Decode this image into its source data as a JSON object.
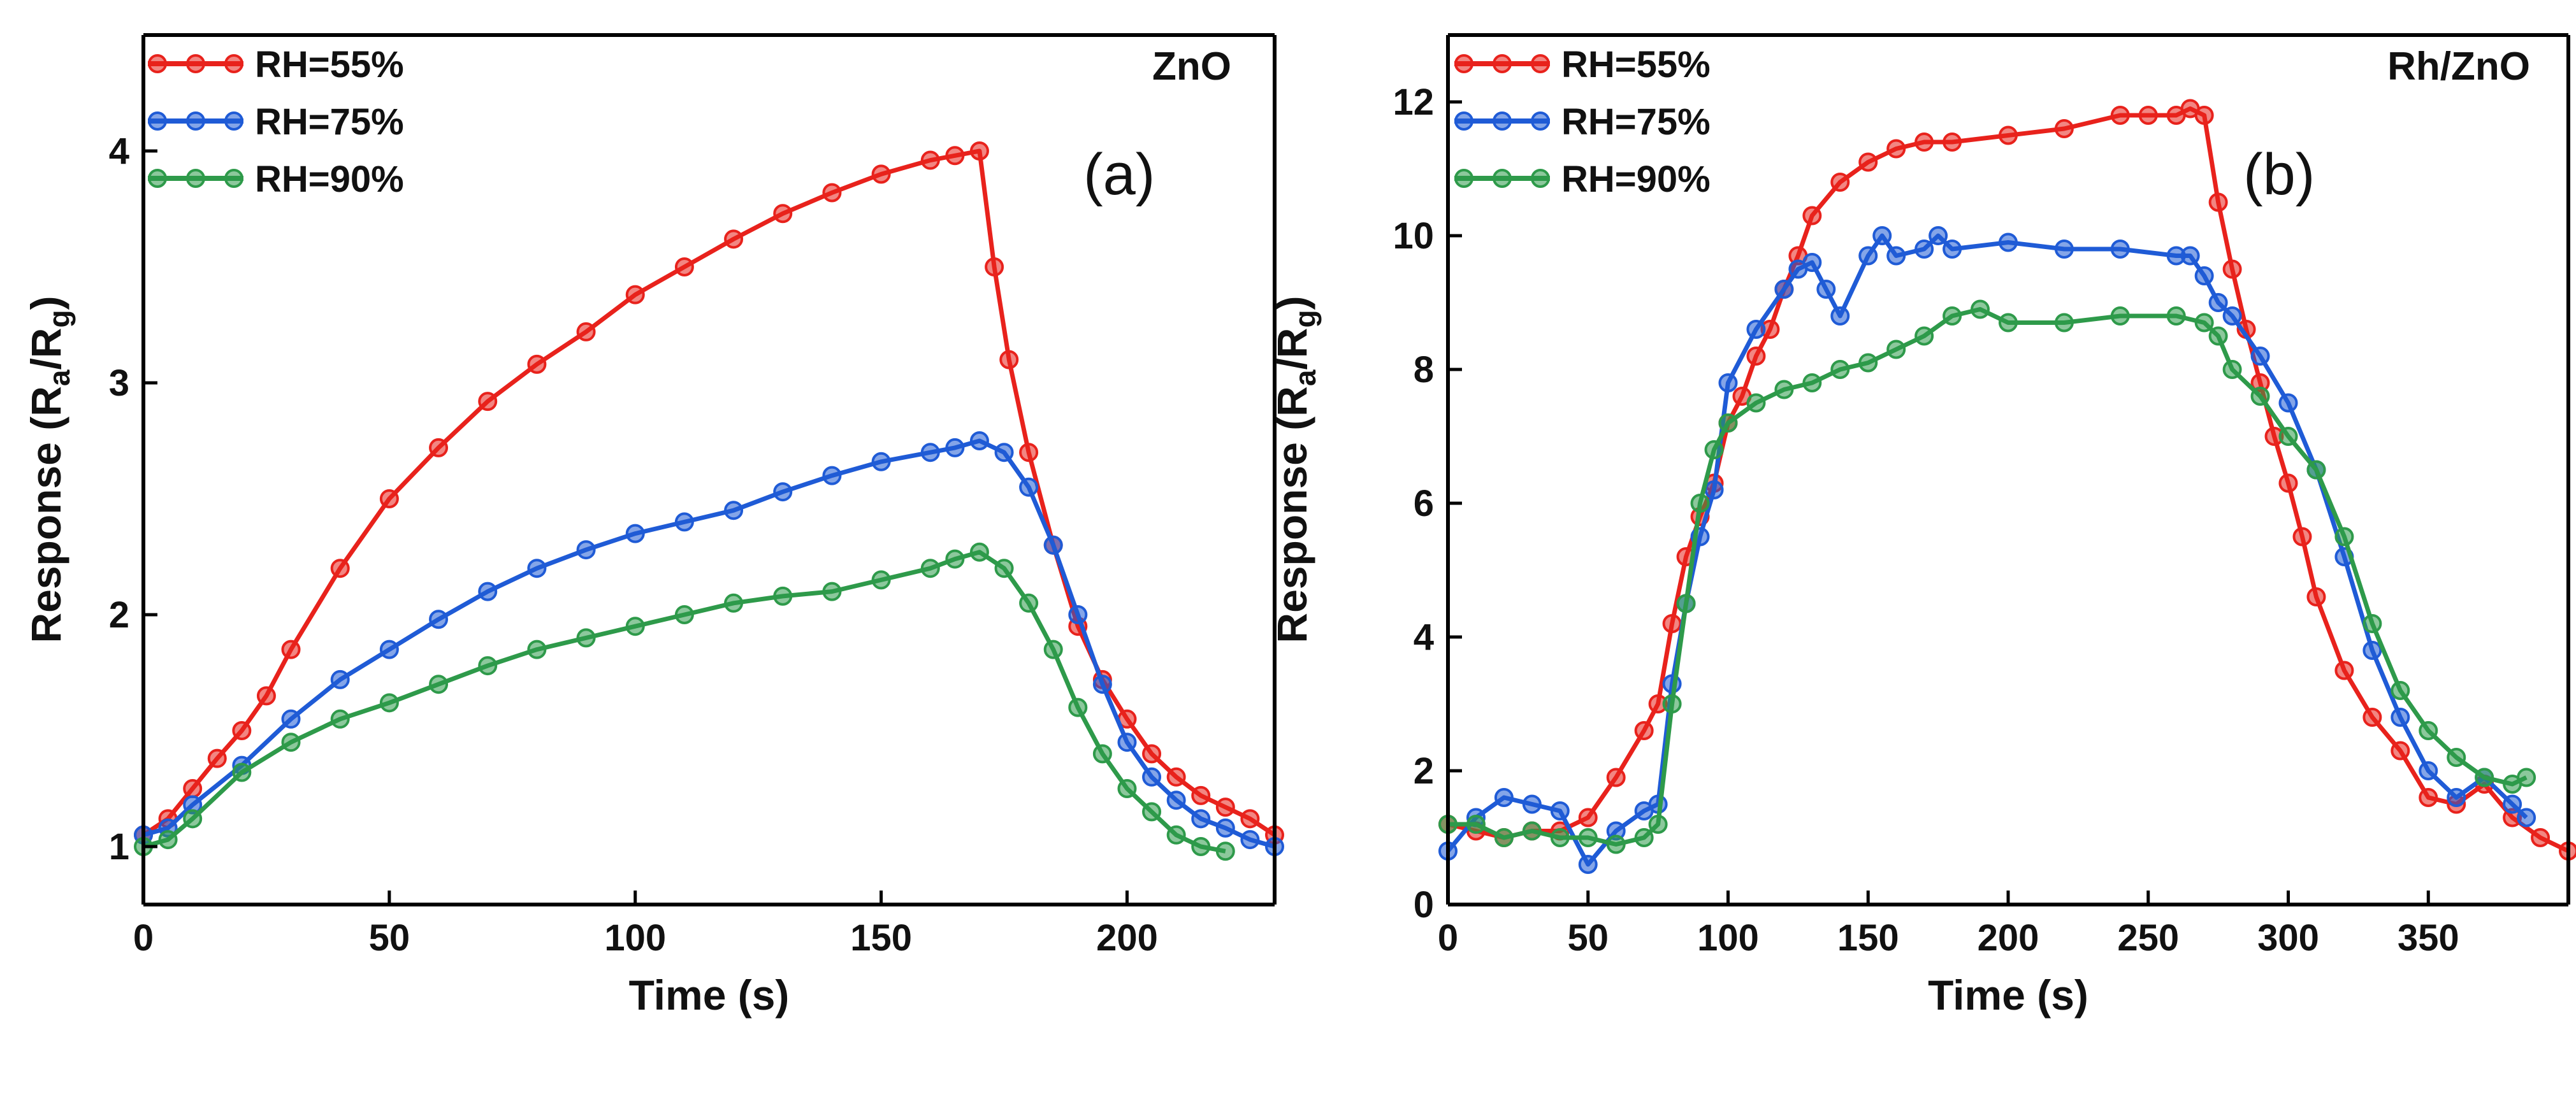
{
  "colors": {
    "RH=55%": "#e8221c",
    "RH=75%": "#1f5bd6",
    "RH=90%": "#2e9a4a"
  },
  "chart_data": [
    {
      "type": "line",
      "panel_label": "(a)",
      "material": "ZnO",
      "xlabel": "Time (s)",
      "ylabel": {
        "main": "Response (R",
        "sub1": "a",
        "mid": "/R",
        "sub2": "g",
        "end": ")"
      },
      "xlim": [
        0,
        230
      ],
      "ylim": [
        0.75,
        4.5
      ],
      "xticks": [
        0,
        50,
        100,
        150,
        200
      ],
      "yticks": [
        1,
        2,
        3,
        4
      ],
      "legend": [
        "RH=55%",
        "RH=75%",
        "RH=90%"
      ],
      "legend_position": "top-left",
      "series": [
        {
          "name": "RH=55%",
          "x": [
            0,
            5,
            10,
            15,
            20,
            25,
            30,
            40,
            50,
            60,
            70,
            80,
            90,
            100,
            110,
            120,
            130,
            140,
            150,
            160,
            165,
            170,
            173,
            176,
            180,
            185,
            190,
            195,
            200,
            205,
            210,
            215,
            220,
            225,
            230
          ],
          "y": [
            1.05,
            1.12,
            1.25,
            1.38,
            1.5,
            1.65,
            1.85,
            2.2,
            2.5,
            2.72,
            2.92,
            3.08,
            3.22,
            3.38,
            3.5,
            3.62,
            3.73,
            3.82,
            3.9,
            3.96,
            3.98,
            4.0,
            3.5,
            3.1,
            2.7,
            2.3,
            1.95,
            1.72,
            1.55,
            1.4,
            1.3,
            1.22,
            1.17,
            1.12,
            1.05
          ]
        },
        {
          "name": "RH=75%",
          "x": [
            0,
            5,
            10,
            20,
            30,
            40,
            50,
            60,
            70,
            80,
            90,
            100,
            110,
            120,
            130,
            140,
            150,
            160,
            165,
            170,
            175,
            180,
            185,
            190,
            195,
            200,
            205,
            210,
            215,
            220,
            225,
            230
          ],
          "y": [
            1.05,
            1.08,
            1.18,
            1.35,
            1.55,
            1.72,
            1.85,
            1.98,
            2.1,
            2.2,
            2.28,
            2.35,
            2.4,
            2.45,
            2.53,
            2.6,
            2.66,
            2.7,
            2.72,
            2.75,
            2.7,
            2.55,
            2.3,
            2.0,
            1.7,
            1.45,
            1.3,
            1.2,
            1.12,
            1.08,
            1.03,
            1.0
          ]
        },
        {
          "name": "RH=90%",
          "x": [
            0,
            5,
            10,
            20,
            30,
            40,
            50,
            60,
            70,
            80,
            90,
            100,
            110,
            120,
            130,
            140,
            150,
            160,
            165,
            170,
            175,
            180,
            185,
            190,
            195,
            200,
            205,
            210,
            215,
            220
          ],
          "y": [
            1.0,
            1.03,
            1.12,
            1.32,
            1.45,
            1.55,
            1.62,
            1.7,
            1.78,
            1.85,
            1.9,
            1.95,
            2.0,
            2.05,
            2.08,
            2.1,
            2.15,
            2.2,
            2.24,
            2.27,
            2.2,
            2.05,
            1.85,
            1.6,
            1.4,
            1.25,
            1.15,
            1.05,
            1.0,
            0.98
          ]
        }
      ]
    },
    {
      "type": "line",
      "panel_label": "(b)",
      "material": "Rh/ZnO",
      "xlabel": "Time (s)",
      "ylabel": {
        "main": "Response (R",
        "sub1": "a",
        "mid": "/R",
        "sub2": "g",
        "end": ")"
      },
      "xlim": [
        0,
        400
      ],
      "ylim": [
        0,
        13
      ],
      "xticks": [
        0,
        50,
        100,
        150,
        200,
        250,
        300,
        350
      ],
      "yticks": [
        0,
        2,
        4,
        6,
        8,
        10,
        12
      ],
      "legend": [
        "RH=55%",
        "RH=75%",
        "RH=90%"
      ],
      "legend_position": "top-left",
      "series": [
        {
          "name": "RH=55%",
          "x": [
            0,
            10,
            20,
            30,
            40,
            50,
            60,
            70,
            75,
            80,
            85,
            90,
            95,
            100,
            105,
            110,
            115,
            120,
            125,
            130,
            140,
            150,
            160,
            170,
            180,
            200,
            220,
            240,
            250,
            260,
            265,
            270,
            275,
            280,
            285,
            290,
            295,
            300,
            305,
            310,
            320,
            330,
            340,
            350,
            360,
            370,
            380,
            390,
            400
          ],
          "y": [
            1.2,
            1.1,
            1.0,
            1.1,
            1.1,
            1.3,
            1.9,
            2.6,
            3.0,
            4.2,
            5.2,
            5.8,
            6.3,
            7.2,
            7.6,
            8.2,
            8.6,
            9.2,
            9.7,
            10.3,
            10.8,
            11.1,
            11.3,
            11.4,
            11.4,
            11.5,
            11.6,
            11.8,
            11.8,
            11.8,
            11.9,
            11.8,
            10.5,
            9.5,
            8.6,
            7.8,
            7.0,
            6.3,
            5.5,
            4.6,
            3.5,
            2.8,
            2.3,
            1.6,
            1.5,
            1.8,
            1.3,
            1.0,
            0.8
          ]
        },
        {
          "name": "RH=75%",
          "x": [
            0,
            10,
            20,
            30,
            40,
            50,
            60,
            70,
            75,
            80,
            85,
            90,
            95,
            100,
            110,
            120,
            125,
            130,
            135,
            140,
            150,
            155,
            160,
            170,
            175,
            180,
            200,
            220,
            240,
            260,
            265,
            270,
            275,
            280,
            290,
            300,
            310,
            320,
            330,
            340,
            350,
            360,
            370,
            380,
            385
          ],
          "y": [
            0.8,
            1.3,
            1.6,
            1.5,
            1.4,
            0.6,
            1.1,
            1.4,
            1.5,
            3.3,
            4.5,
            5.5,
            6.2,
            7.8,
            8.6,
            9.2,
            9.5,
            9.6,
            9.2,
            8.8,
            9.7,
            10.0,
            9.7,
            9.8,
            10.0,
            9.8,
            9.9,
            9.8,
            9.8,
            9.7,
            9.7,
            9.4,
            9.0,
            8.8,
            8.2,
            7.5,
            6.5,
            5.2,
            3.8,
            2.8,
            2.0,
            1.6,
            1.9,
            1.5,
            1.3
          ]
        },
        {
          "name": "RH=90%",
          "x": [
            0,
            10,
            20,
            30,
            40,
            50,
            60,
            70,
            75,
            80,
            85,
            90,
            95,
            100,
            110,
            120,
            130,
            140,
            150,
            160,
            170,
            180,
            190,
            200,
            220,
            240,
            260,
            270,
            275,
            280,
            290,
            300,
            310,
            320,
            330,
            340,
            350,
            360,
            370,
            380,
            385
          ],
          "y": [
            1.2,
            1.2,
            1.0,
            1.1,
            1.0,
            1.0,
            0.9,
            1.0,
            1.2,
            3.0,
            4.5,
            6.0,
            6.8,
            7.2,
            7.5,
            7.7,
            7.8,
            8.0,
            8.1,
            8.3,
            8.5,
            8.8,
            8.9,
            8.7,
            8.7,
            8.8,
            8.8,
            8.7,
            8.5,
            8.0,
            7.6,
            7.0,
            6.5,
            5.5,
            4.2,
            3.2,
            2.6,
            2.2,
            1.9,
            1.8,
            1.9
          ]
        }
      ]
    }
  ]
}
